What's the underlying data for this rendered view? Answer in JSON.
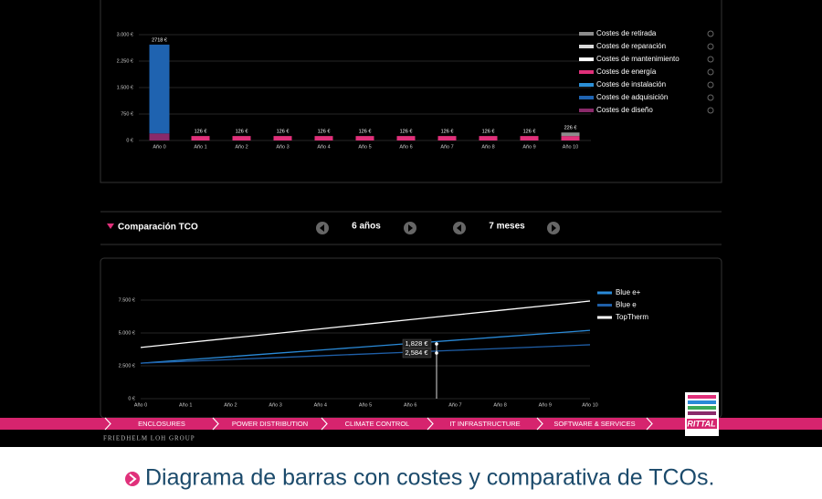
{
  "chart_data": [
    {
      "type": "bar",
      "stacked": true,
      "grid": true,
      "categories": [
        "Año 0",
        "Año 1",
        "Año 2",
        "Año 3",
        "Año 4",
        "Año 5",
        "Año 6",
        "Año 7",
        "Año 8",
        "Año 9",
        "Año 10"
      ],
      "series": [
        {
          "name": "Costes de retirada",
          "color": "#8c8c8c",
          "values": [
            null,
            null,
            null,
            null,
            null,
            null,
            null,
            null,
            null,
            null,
            100
          ]
        },
        {
          "name": "Costes de reparación",
          "color": "#d9d9d9",
          "values": [
            null,
            null,
            null,
            null,
            null,
            null,
            null,
            null,
            null,
            null,
            null
          ]
        },
        {
          "name": "Costes de mantenimiento",
          "color": "#ffffff",
          "values": [
            null,
            null,
            null,
            null,
            null,
            null,
            null,
            null,
            null,
            null,
            null
          ]
        },
        {
          "name": "Costes de energía",
          "color": "#e0307a",
          "values": [
            null,
            126,
            126,
            126,
            126,
            126,
            126,
            126,
            126,
            126,
            126
          ]
        },
        {
          "name": "Costes de instalación",
          "color": "#2b8fd6",
          "values": [
            null,
            null,
            null,
            null,
            null,
            null,
            null,
            null,
            null,
            null,
            null
          ]
        },
        {
          "name": "Costes de adquisición",
          "color": "#1f63b0",
          "values": [
            2518,
            null,
            null,
            null,
            null,
            null,
            null,
            null,
            null,
            null,
            null
          ]
        },
        {
          "name": "Costes de diseño",
          "color": "#8a2a6a",
          "values": [
            200,
            null,
            null,
            null,
            null,
            null,
            null,
            null,
            null,
            null,
            null
          ]
        }
      ],
      "totals": [
        2718,
        126,
        126,
        126,
        126,
        126,
        126,
        126,
        126,
        126,
        226
      ],
      "total_labels": [
        "2718 €",
        "126 €",
        "126 €",
        "126 €",
        "126 €",
        "126 €",
        "126 €",
        "126 €",
        "126 €",
        "126 €",
        "226 €"
      ],
      "ylim": [
        0,
        3000
      ],
      "yticks": [
        {
          "value": 0,
          "label": "0 €"
        },
        {
          "value": 750,
          "label": "750 €"
        },
        {
          "value": 1500,
          "label": "1.500 €"
        },
        {
          "value": 2250,
          "label": "2.250 €"
        },
        {
          "value": 3000,
          "label": "3.000 €"
        }
      ]
    },
    {
      "type": "line",
      "grid": true,
      "categories": [
        "Año 0",
        "Año 1",
        "Año 2",
        "Año 3",
        "Año 4",
        "Año 5",
        "Año 6",
        "Año 7",
        "Año 8",
        "Año 9",
        "Año 10"
      ],
      "series": [
        {
          "name": "Blue e+",
          "color": "#2a8ad8",
          "values": [
            2700,
            2950,
            3200,
            3450,
            3700,
            3950,
            4200,
            4450,
            4700,
            4950,
            5200
          ]
        },
        {
          "name": "Blue e",
          "color": "#1f5fa8",
          "values": [
            2700,
            2840,
            2980,
            3120,
            3260,
            3400,
            3540,
            3680,
            3820,
            3960,
            4100
          ]
        },
        {
          "name": "TopTherm",
          "color": "#ffffff",
          "values": [
            3900,
            4253,
            4606,
            4959,
            5312,
            5665,
            6018,
            6371,
            6724,
            7077,
            7430
          ]
        }
      ],
      "annotations": [
        "1,828 €",
        "2,584 €"
      ],
      "ylim": [
        0,
        7500
      ],
      "yticks": [
        {
          "value": 0,
          "label": "0 €"
        },
        {
          "value": 2500,
          "label": "2.500 €"
        },
        {
          "value": 5000,
          "label": "5.000 €"
        },
        {
          "value": 7500,
          "label": "7.500 €"
        }
      ]
    }
  ],
  "controls": {
    "title": "Comparación TCO",
    "years": "6 años",
    "months": "7 meses"
  },
  "nav": [
    "ENCLOSURES",
    "POWER DISTRIBUTION",
    "CLIMATE CONTROL",
    "IT INFRASTRUCTURE",
    "SOFTWARE & SERVICES"
  ],
  "logo": "RITTAL",
  "footer": "FRIEDHELM LOH GROUP",
  "caption": "Diagrama de barras con costes y comparativa de TCOs."
}
